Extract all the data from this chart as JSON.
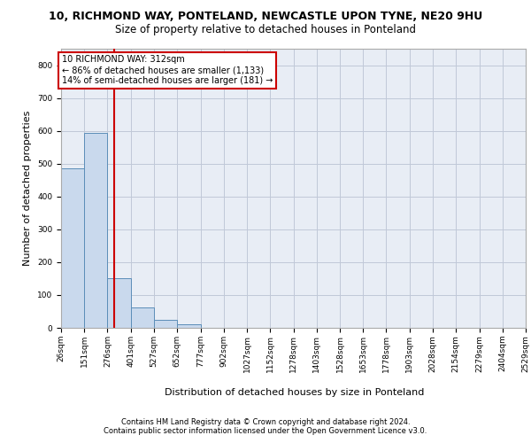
{
  "title1": "10, RICHMOND WAY, PONTELAND, NEWCASTLE UPON TYNE, NE20 9HU",
  "title2": "Size of property relative to detached houses in Ponteland",
  "xlabel": "Distribution of detached houses by size in Ponteland",
  "ylabel": "Number of detached properties",
  "footer1": "Contains HM Land Registry data © Crown copyright and database right 2024.",
  "footer2": "Contains public sector information licensed under the Open Government Licence v3.0.",
  "bin_edges": [
    26,
    151,
    276,
    401,
    527,
    652,
    777,
    902,
    1027,
    1152,
    1278,
    1403,
    1528,
    1653,
    1778,
    1903,
    2028,
    2154,
    2279,
    2404,
    2529
  ],
  "bar_values": [
    485,
    595,
    150,
    62,
    25,
    10,
    0,
    0,
    0,
    0,
    0,
    0,
    0,
    0,
    0,
    0,
    0,
    0,
    0,
    0
  ],
  "bar_color": "#c9d9ed",
  "bar_edge_color": "#5b8db8",
  "property_size": 312,
  "vline_color": "#cc0000",
  "annotation_text_line1": "10 RICHMOND WAY: 312sqm",
  "annotation_text_line2": "← 86% of detached houses are smaller (1,133)",
  "annotation_text_line3": "14% of semi-detached houses are larger (181) →",
  "annotation_box_color": "#cc0000",
  "ylim": [
    0,
    850
  ],
  "yticks": [
    0,
    100,
    200,
    300,
    400,
    500,
    600,
    700,
    800
  ],
  "grid_color": "#c0c8d8",
  "bg_color": "#e8edf5",
  "title1_fontsize": 9,
  "title2_fontsize": 8.5,
  "xlabel_fontsize": 8,
  "ylabel_fontsize": 8,
  "tick_fontsize": 6.5,
  "footer_fontsize": 6,
  "annotation_fontsize": 7
}
